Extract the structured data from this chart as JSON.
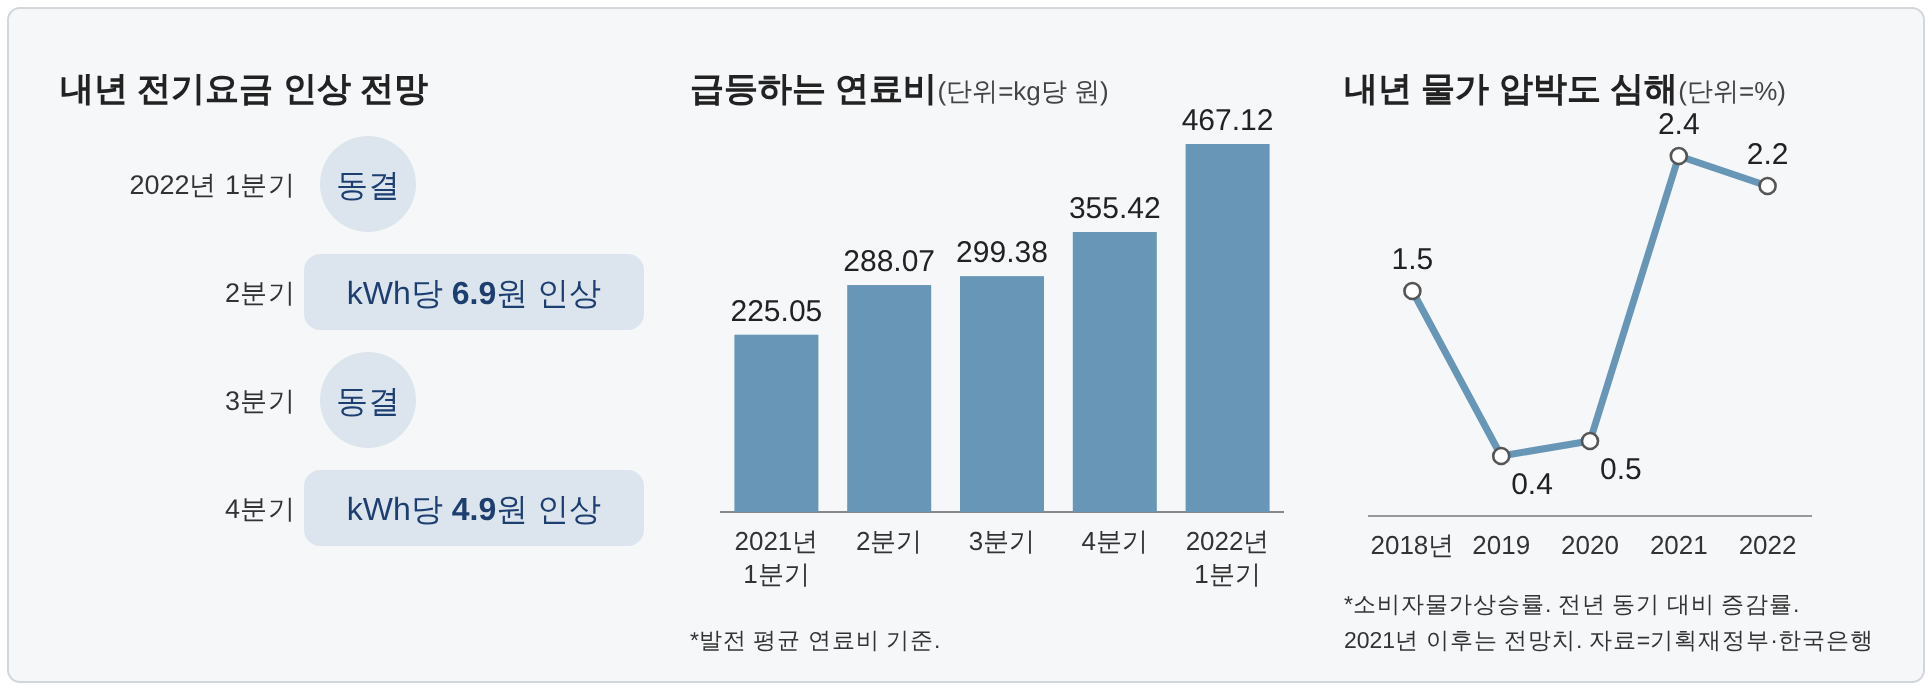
{
  "chart_data": [
    {
      "type": "other",
      "title": "내년 전기요금 인상 전망",
      "categories": [
        "2022년 1분기",
        "2분기",
        "3분기",
        "4분기"
      ],
      "annotations": [
        "동결",
        "kWh당 6.9원 인상",
        "동결",
        "kWh당 4.9원 인상"
      ]
    },
    {
      "type": "bar",
      "title": "급등하는 연료비",
      "subtitle": "(단위=kg당 원)",
      "categories": [
        "2021년\n1분기",
        "2분기",
        "3분기",
        "4분기",
        "2022년\n1분기"
      ],
      "values": [
        225.05,
        288.07,
        299.38,
        355.42,
        467.12
      ],
      "color": "#6796b6",
      "data_labels": true,
      "annotations": [
        "*발전 평균 연료비 기준."
      ]
    },
    {
      "type": "line",
      "title": "내년 물가 압박도 심해",
      "subtitle": "(단위=%)",
      "categories": [
        "2018년",
        "2019",
        "2020",
        "2021",
        "2022"
      ],
      "values": [
        1.5,
        0.4,
        0.5,
        2.4,
        2.2
      ],
      "color": "#6796b6",
      "marker": "circle",
      "data_labels": true,
      "annotations": [
        "*소비자물가상승률. 전년 동기 대비 증감률.",
        "2021년 이후는 전망치. 자료=기획재정부·한국은행"
      ]
    }
  ]
}
